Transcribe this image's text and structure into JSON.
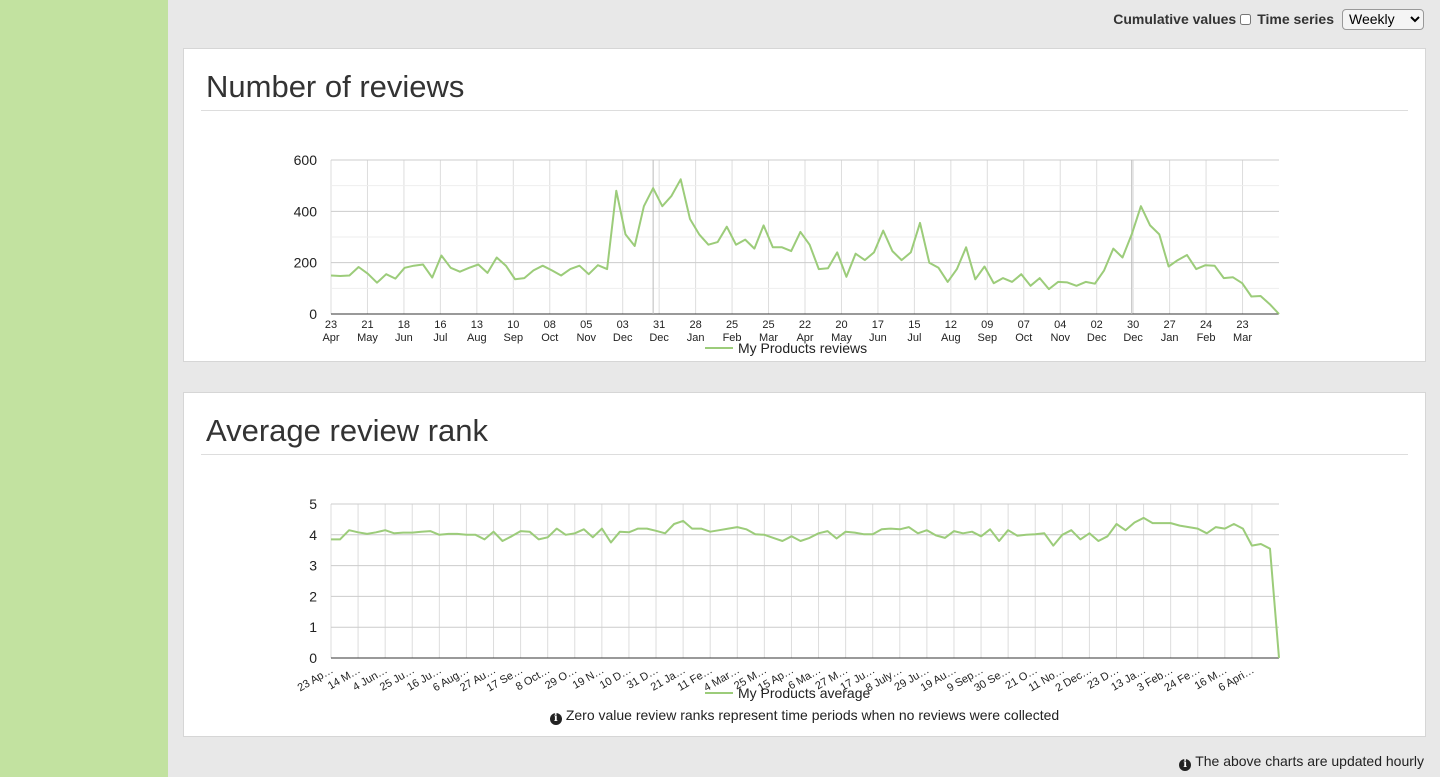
{
  "controls": {
    "cumulative_label": "Cumulative values",
    "cumulative_checked": false,
    "time_series_label": "Time series",
    "time_series_value": "Weekly"
  },
  "panels": {
    "reviews_title": "Number of reviews",
    "rank_title": "Average review rank",
    "rank_note": "Zero value review ranks represent time periods when no reviews were collected"
  },
  "footer_note": "The above charts are updated hourly",
  "colors": {
    "line": "#9ccc7a",
    "sidebar": "#c2e2a0",
    "grid": "#dddddd"
  },
  "icons": {
    "info": "info-circle-icon"
  },
  "chart_data": [
    {
      "type": "line",
      "title": "Number of reviews",
      "ylim": [
        0,
        600
      ],
      "y_ticks": [
        0,
        200,
        400,
        600
      ],
      "x_tick_labels": [
        [
          "23",
          "Apr"
        ],
        [
          "21",
          "May"
        ],
        [
          "18",
          "Jun"
        ],
        [
          "16",
          "Jul"
        ],
        [
          "13",
          "Aug"
        ],
        [
          "10",
          "Sep"
        ],
        [
          "08",
          "Oct"
        ],
        [
          "05",
          "Nov"
        ],
        [
          "03",
          "Dec"
        ],
        [
          "31",
          "Dec"
        ],
        [
          "28",
          "Jan"
        ],
        [
          "25",
          "Feb"
        ],
        [
          "25",
          "Mar"
        ],
        [
          "22",
          "Apr"
        ],
        [
          "20",
          "May"
        ],
        [
          "17",
          "Jun"
        ],
        [
          "15",
          "Jul"
        ],
        [
          "12",
          "Aug"
        ],
        [
          "09",
          "Sep"
        ],
        [
          "07",
          "Oct"
        ],
        [
          "04",
          "Nov"
        ],
        [
          "02",
          "Dec"
        ],
        [
          "30",
          "Dec"
        ],
        [
          "27",
          "Jan"
        ],
        [
          "24",
          "Feb"
        ],
        [
          "23",
          "Mar"
        ]
      ],
      "grid": true,
      "legend_position": "bottom",
      "series": [
        {
          "name": "My Products reviews",
          "values": [
            150,
            148,
            150,
            183,
            157,
            122,
            155,
            138,
            180,
            188,
            193,
            142,
            228,
            180,
            165,
            180,
            193,
            160,
            220,
            188,
            135,
            140,
            170,
            188,
            170,
            150,
            175,
            188,
            155,
            190,
            175,
            480,
            310,
            265,
            420,
            490,
            420,
            460,
            525,
            370,
            310,
            270,
            280,
            340,
            270,
            290,
            255,
            345,
            260,
            260,
            245,
            320,
            270,
            175,
            178,
            240,
            145,
            235,
            210,
            240,
            325,
            245,
            210,
            240,
            355,
            200,
            180,
            125,
            175,
            260,
            135,
            185,
            120,
            140,
            125,
            155,
            110,
            140,
            97,
            125,
            123,
            110,
            125,
            118,
            170,
            255,
            220,
            310,
            420,
            345,
            310,
            185,
            210,
            230,
            175,
            190,
            188,
            140,
            143,
            120,
            68,
            70,
            38,
            0
          ]
        }
      ]
    },
    {
      "type": "line",
      "title": "Average review rank",
      "ylim": [
        0,
        5
      ],
      "y_ticks": [
        0,
        1,
        2,
        3,
        4,
        5
      ],
      "x_tick_labels": [
        "23 Ap…",
        "14 M…",
        "4 Jun…",
        "25 Ju…",
        "16 Ju…",
        "6 Aug…",
        "27 Au…",
        "17 Se…",
        "8 Oct…",
        "29 O…",
        "19 N…",
        "10 D…",
        "31 D…",
        "21 Ja…",
        "11 Fe…",
        "4 Mar…",
        "25 M…",
        "15 Ap…",
        "6 Ma…",
        "27 M…",
        "17 Ju…",
        "8 July…",
        "29 Ju…",
        "19 Au…",
        "9 Sep…",
        "30 Se…",
        "21 O…",
        "11 No…",
        "2 Dec…",
        "23 D…",
        "13 Ja…",
        "3 Feb…",
        "24 Fe…",
        "16 M…",
        "6 Apri…"
      ],
      "grid": true,
      "legend_position": "bottom",
      "series": [
        {
          "name": "My Products average",
          "values": [
            3.85,
            3.85,
            4.15,
            4.08,
            4.03,
            4.08,
            4.15,
            4.05,
            4.07,
            4.07,
            4.1,
            4.12,
            4.0,
            4.03,
            4.03,
            4.0,
            4.0,
            3.85,
            4.1,
            3.8,
            3.95,
            4.12,
            4.1,
            3.85,
            3.92,
            4.2,
            4.0,
            4.05,
            4.18,
            3.92,
            4.2,
            3.75,
            4.1,
            4.08,
            4.2,
            4.2,
            4.13,
            4.05,
            4.35,
            4.45,
            4.2,
            4.2,
            4.1,
            4.15,
            4.2,
            4.25,
            4.18,
            4.02,
            4.0,
            3.9,
            3.8,
            3.95,
            3.8,
            3.9,
            4.05,
            4.12,
            3.88,
            4.1,
            4.07,
            4.02,
            4.02,
            4.18,
            4.2,
            4.18,
            4.25,
            4.05,
            4.15,
            3.98,
            3.9,
            4.12,
            4.05,
            4.1,
            3.95,
            4.18,
            3.8,
            4.15,
            3.97,
            4.0,
            4.02,
            4.05,
            3.65,
            4.0,
            4.15,
            3.85,
            4.05,
            3.8,
            3.95,
            4.35,
            4.15,
            4.4,
            4.55,
            4.38,
            4.38,
            4.38,
            4.3,
            4.25,
            4.2,
            4.05,
            4.25,
            4.2,
            4.35,
            4.2,
            3.65,
            3.7,
            3.55,
            0
          ]
        }
      ]
    }
  ]
}
